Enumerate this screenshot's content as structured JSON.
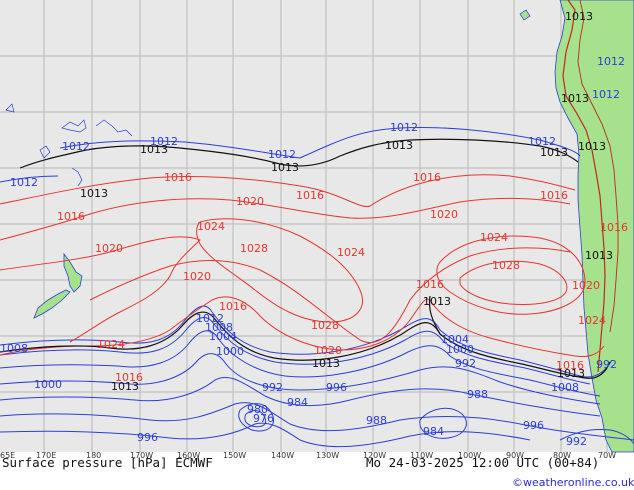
{
  "footer": {
    "title": "Surface pressure [hPa] ECMWF",
    "datetime": "Mo 24-03-2025 12:00 UTC (00+84)",
    "credit": "©weatheronline.co.uk"
  },
  "axis_ticks": [
    "65E",
    "170E",
    "180",
    "170W",
    "160W",
    "150W",
    "140W",
    "130W",
    "120W",
    "110W",
    "100W",
    "90W",
    "80W",
    "70W"
  ],
  "colors": {
    "ocean": "#e8e8e8",
    "land": "#a6e28c",
    "isobar_low": "#2b3fd8",
    "isobar_high": "#e8352c",
    "isobar_1013": "#111111",
    "grid": "#b9b9b9"
  },
  "isobar_labels": {
    "blue": [
      "1012",
      "1012",
      "1012",
      "1012",
      "1012",
      "1012",
      "1012",
      "1012",
      "1012",
      "1008",
      "1004",
      "1000",
      "1008",
      "1004",
      "1000",
      "1000",
      "992",
      "996",
      "992",
      "984",
      "980",
      "976",
      "988",
      "996",
      "984",
      "992",
      "988",
      "1008",
      "996",
      "992"
    ],
    "red": [
      "1016",
      "1016",
      "1016",
      "1016",
      "1016",
      "1016",
      "1020",
      "1020",
      "1020",
      "1020",
      "1020",
      "1024",
      "1024",
      "1024",
      "1024",
      "1028",
      "1028",
      "1028",
      "1020",
      "1016",
      "1016",
      "1024",
      "1016",
      "1016"
    ],
    "black": [
      "1013",
      "1013",
      "1013",
      "1013",
      "1013",
      "1013",
      "1013",
      "1013",
      "1013",
      "1013",
      "1013"
    ]
  }
}
